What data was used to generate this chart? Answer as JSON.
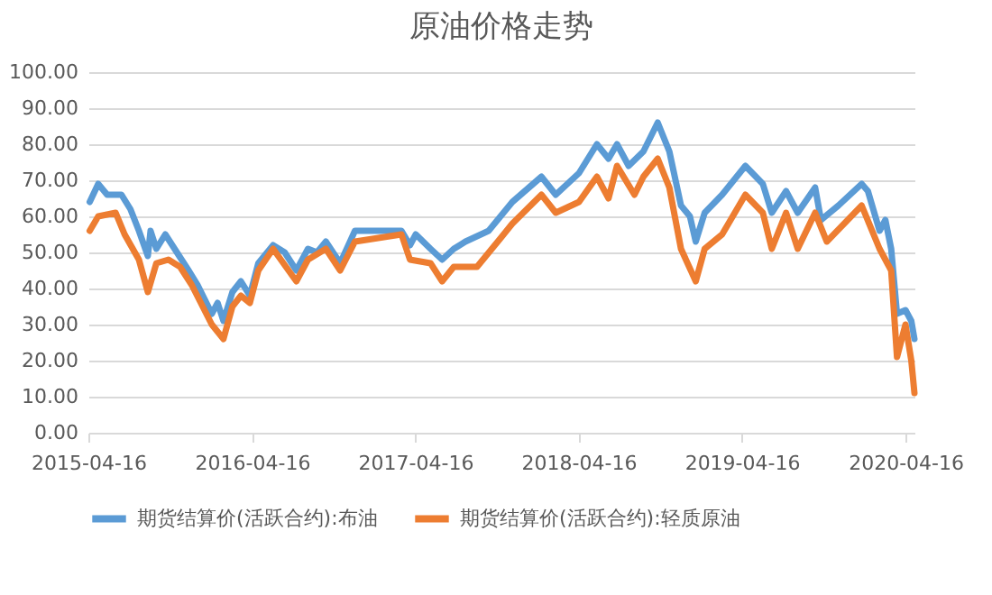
{
  "chart_data": {
    "type": "line",
    "title": "原油价格走势",
    "xlim": [
      "2015-04-16",
      "2020-05-06"
    ],
    "xticks": [
      "2015-04-16",
      "2016-04-16",
      "2017-04-16",
      "2018-04-16",
      "2019-04-16",
      "2020-04-16"
    ],
    "ylim": [
      0,
      100
    ],
    "yticks": [
      {
        "value": 0,
        "label": "0.00"
      },
      {
        "value": 10,
        "label": "10.00"
      },
      {
        "value": 20,
        "label": "20.00"
      },
      {
        "value": 30,
        "label": "30.00"
      },
      {
        "value": 40,
        "label": "40.00"
      },
      {
        "value": 50,
        "label": "50.00"
      },
      {
        "value": 60,
        "label": "60.00"
      },
      {
        "value": 70,
        "label": "70.00"
      },
      {
        "value": 80,
        "label": "80.00"
      },
      {
        "value": 90,
        "label": "90.00"
      },
      {
        "value": 100,
        "label": "100.00"
      }
    ],
    "grid": "y",
    "legend": "bottom",
    "marker": "none",
    "line_style": "solid",
    "series": [
      {
        "name": "期货结算价(活跃合约):布油",
        "color": "#5b9bd5",
        "x": [
          "2015-04-19",
          "2015-05-08",
          "2015-05-28",
          "2015-06-29",
          "2015-07-19",
          "2015-08-07",
          "2015-08-27",
          "2015-09-02",
          "2015-09-15",
          "2015-10-05",
          "2015-10-31",
          "2015-11-26",
          "2015-12-16",
          "2016-01-17",
          "2016-01-30",
          "2016-02-12",
          "2016-03-03",
          "2016-03-22",
          "2016-04-11",
          "2016-04-30",
          "2016-06-02",
          "2016-06-28",
          "2016-07-24",
          "2016-08-19",
          "2016-09-08",
          "2016-09-28",
          "2016-10-30",
          "2016-12-02",
          "2017-01-23",
          "2017-03-16",
          "2017-04-04",
          "2017-04-17",
          "2017-05-20",
          "2017-06-15",
          "2017-07-11",
          "2017-08-06",
          "2017-09-27",
          "2017-11-19",
          "2018-01-23",
          "2018-02-24",
          "2018-04-17",
          "2018-05-27",
          "2018-06-22",
          "2018-07-11",
          "2018-08-06",
          "2018-09-08",
          "2018-10-10",
          "2018-11-05",
          "2018-12-01",
          "2018-12-21",
          "2019-01-03",
          "2019-01-23",
          "2019-03-03",
          "2019-04-24",
          "2019-06-02",
          "2019-06-22",
          "2019-07-24",
          "2019-08-19",
          "2019-09-27",
          "2019-10-10",
          "2019-11-18",
          "2020-01-09",
          "2020-01-23",
          "2020-02-18",
          "2020-03-02",
          "2020-03-15",
          "2020-03-28",
          "2020-04-16",
          "2020-04-29",
          "2020-05-06"
        ],
        "values": [
          64,
          69,
          66,
          66,
          62,
          56,
          49,
          56,
          51,
          55,
          50,
          45,
          41,
          33,
          36,
          31,
          39,
          42,
          38,
          47,
          52,
          50,
          45,
          51,
          50,
          53,
          47,
          56,
          56,
          56,
          52,
          55,
          51,
          48,
          51,
          53,
          56,
          64,
          71,
          66,
          72,
          80,
          76,
          80,
          74,
          78,
          86,
          78,
          63,
          60,
          53,
          61,
          66,
          74,
          69,
          61,
          67,
          61,
          68,
          59,
          63,
          69,
          67,
          56,
          59,
          51,
          33,
          34,
          31,
          26
        ]
      },
      {
        "name": "期货结算价(活跃合约):轻质原油",
        "color": "#ed7d31",
        "x": [
          "2015-04-19",
          "2015-05-08",
          "2015-06-16",
          "2015-07-06",
          "2015-08-07",
          "2015-08-27",
          "2015-09-15",
          "2015-10-12",
          "2015-11-07",
          "2015-12-03",
          "2016-01-17",
          "2016-02-12",
          "2016-03-03",
          "2016-03-22",
          "2016-04-11",
          "2016-04-30",
          "2016-06-02",
          "2016-07-24",
          "2016-08-19",
          "2016-09-28",
          "2016-10-30",
          "2016-12-02",
          "2017-01-23",
          "2017-03-16",
          "2017-04-04",
          "2017-05-20",
          "2017-06-15",
          "2017-07-11",
          "2017-09-01",
          "2017-10-24",
          "2017-11-19",
          "2018-01-23",
          "2018-02-24",
          "2018-04-17",
          "2018-05-27",
          "2018-06-22",
          "2018-07-11",
          "2018-08-19",
          "2018-09-08",
          "2018-10-10",
          "2018-11-05",
          "2018-12-01",
          "2019-01-03",
          "2019-01-23",
          "2019-03-03",
          "2019-04-24",
          "2019-06-02",
          "2019-06-22",
          "2019-07-24",
          "2019-08-19",
          "2019-09-27",
          "2019-10-23",
          "2020-01-09",
          "2020-02-18",
          "2020-03-15",
          "2020-03-28",
          "2020-04-16",
          "2020-04-29",
          "2020-05-06"
        ],
        "values": [
          56,
          60,
          61,
          55,
          48,
          39,
          47,
          48,
          46,
          41,
          30,
          26,
          35,
          38,
          36,
          45,
          51,
          42,
          48,
          51,
          45,
          53,
          54,
          55,
          48,
          47,
          42,
          46,
          46,
          54,
          58,
          66,
          61,
          64,
          71,
          65,
          74,
          66,
          71,
          76,
          68,
          51,
          42,
          51,
          55,
          66,
          61,
          51,
          61,
          51,
          61,
          53,
          63,
          51,
          45,
          21,
          30,
          20,
          11
        ]
      }
    ]
  }
}
